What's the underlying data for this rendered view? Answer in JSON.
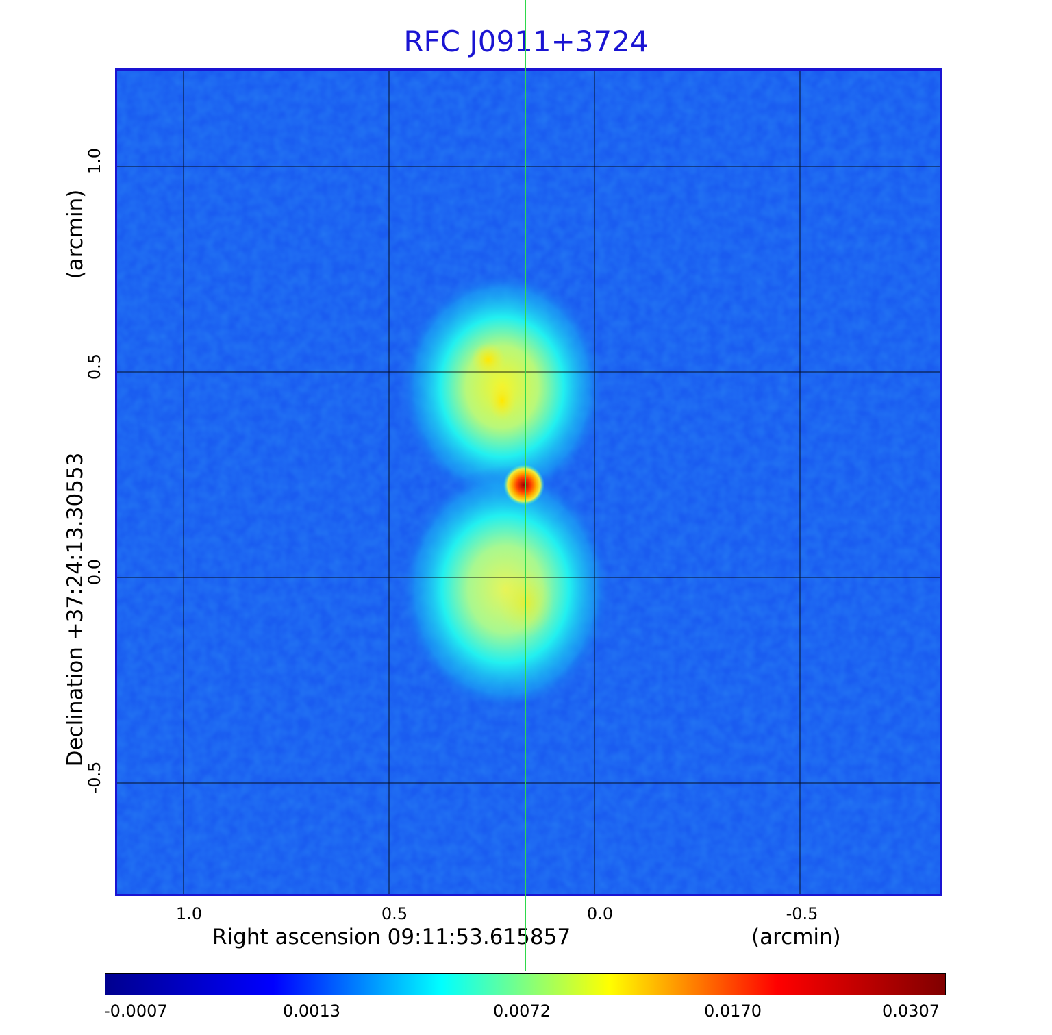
{
  "title": "RFC J0911+3724",
  "axes": {
    "x_ticks": [
      "1.0",
      "0.5",
      "0.0",
      "-0.5"
    ],
    "y_ticks": [
      "1.0",
      "0.5",
      "0.0",
      "-0.5"
    ],
    "x_label": "Right ascension  09:11:53.615857",
    "x_unit": "(arcmin)",
    "y_label": "Declination  +37:24:13.30553",
    "y_unit": "(arcmin)"
  },
  "colorbar": {
    "ticks": [
      "-0.0007",
      "0.0013",
      "0.0072",
      "0.0170",
      "0.0307"
    ],
    "colors": [
      "#00008f",
      "#0000ff",
      "#00ffff",
      "#ffff00",
      "#ff0000",
      "#800000"
    ]
  },
  "colors": {
    "title": "#1a14d2",
    "frame": "#1a14d2",
    "background_field": "#1a5cf0",
    "crosshair": "#2fd84a"
  }
}
